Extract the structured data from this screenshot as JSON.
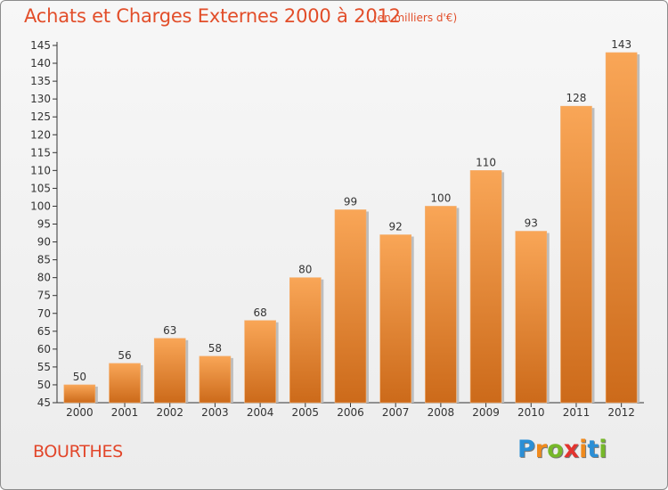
{
  "chart_data": {
    "type": "bar",
    "title": "Achats et Charges Externes 2000 à 2012",
    "subtitle": "(en milliers d'€)",
    "categories": [
      "2000",
      "2001",
      "2002",
      "2003",
      "2004",
      "2005",
      "2006",
      "2007",
      "2008",
      "2009",
      "2010",
      "2011",
      "2012"
    ],
    "values": [
      50,
      56,
      63,
      58,
      68,
      80,
      99,
      92,
      100,
      110,
      93,
      128,
      143
    ],
    "ylim": [
      45,
      145
    ],
    "ytick_step": 5,
    "grid": false,
    "legend": "none",
    "bar_color_top": "#f9a657",
    "bar_color_bottom": "#cc6a1a"
  },
  "footer": {
    "commune": "BOURTHES",
    "logo_letters": [
      {
        "char": "P",
        "color": "#2b8fd6"
      },
      {
        "char": "r",
        "color": "#f08a1c"
      },
      {
        "char": "o",
        "color": "#76b82a"
      },
      {
        "char": "x",
        "color": "#e3342f"
      },
      {
        "char": "i",
        "color": "#f08a1c"
      },
      {
        "char": "t",
        "color": "#2b8fd6"
      },
      {
        "char": "i",
        "color": "#76b82a"
      }
    ]
  }
}
